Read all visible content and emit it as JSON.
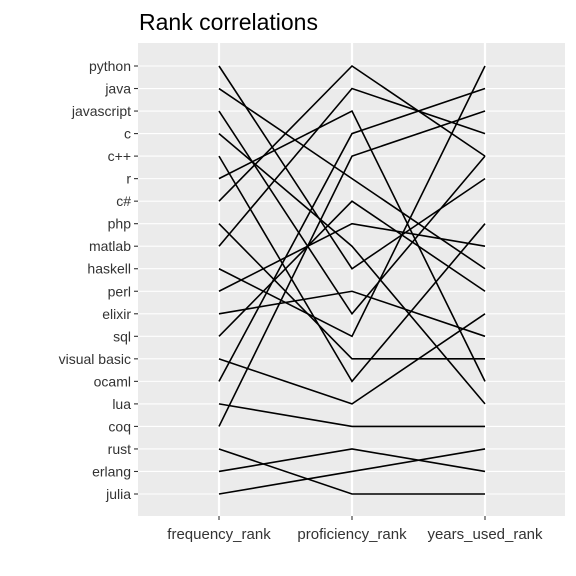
{
  "chart_data": {
    "type": "line",
    "title": "Rank correlations",
    "xlabel": "",
    "ylabel": "",
    "grid": true,
    "legend": "none",
    "colors": {
      "panel": "#ebebeb",
      "grid": "#ffffff",
      "line": "#000000",
      "text": "#333333",
      "tick": "#333333"
    },
    "x": [
      "frequency_rank",
      "proficiency_rank",
      "years_used_rank"
    ],
    "categories": [
      "python",
      "java",
      "javascript",
      "c",
      "c++",
      "r",
      "c#",
      "php",
      "matlab",
      "haskell",
      "perl",
      "elixir",
      "sql",
      "visual basic",
      "ocaml",
      "lua",
      "coq",
      "rust",
      "erlang",
      "julia"
    ],
    "series": [
      {
        "values": [
          "python",
          "haskell",
          "r"
        ]
      },
      {
        "values": [
          "java",
          "r",
          "haskell"
        ]
      },
      {
        "values": [
          "javascript",
          "elixir",
          "c++"
        ]
      },
      {
        "values": [
          "c",
          "matlab",
          "lua"
        ]
      },
      {
        "values": [
          "c++",
          "ocaml",
          "php"
        ]
      },
      {
        "values": [
          "r",
          "javascript",
          "ocaml"
        ]
      },
      {
        "values": [
          "c#",
          "python",
          "c++"
        ]
      },
      {
        "values": [
          "php",
          "visual basic",
          "visual basic"
        ]
      },
      {
        "values": [
          "matlab",
          "java",
          "c"
        ]
      },
      {
        "values": [
          "haskell",
          "sql",
          "python"
        ]
      },
      {
        "values": [
          "perl",
          "php",
          "matlab"
        ]
      },
      {
        "values": [
          "elixir",
          "perl",
          "sql"
        ]
      },
      {
        "values": [
          "sql",
          "c#",
          "perl"
        ]
      },
      {
        "values": [
          "visual basic",
          "lua",
          "elixir"
        ]
      },
      {
        "values": [
          "ocaml",
          "c",
          "java"
        ]
      },
      {
        "values": [
          "lua",
          "coq",
          "coq"
        ]
      },
      {
        "values": [
          "coq",
          "c++",
          "javascript"
        ]
      },
      {
        "values": [
          "rust",
          "julia",
          "julia"
        ]
      },
      {
        "values": [
          "erlang",
          "rust",
          "erlang"
        ]
      },
      {
        "values": [
          "julia",
          "erlang",
          "rust"
        ]
      }
    ]
  }
}
